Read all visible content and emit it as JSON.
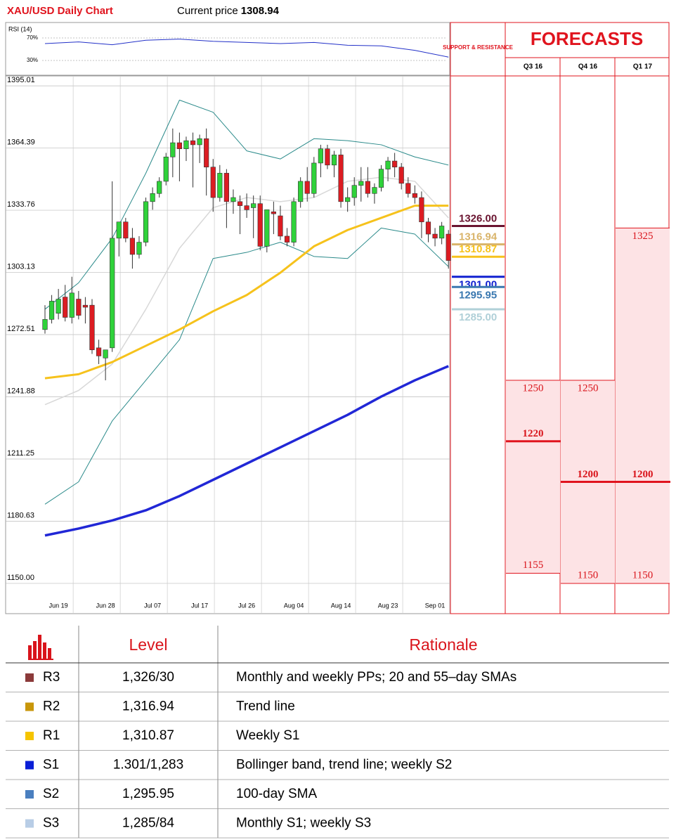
{
  "chart_data": [
    {
      "type": "rsi",
      "label": "RSI (14)",
      "color": "#2230c8",
      "x": [
        0,
        5,
        10,
        15,
        20,
        25,
        30,
        35,
        40,
        45,
        50,
        55,
        60
      ],
      "values": [
        60,
        63,
        58,
        66,
        68,
        64,
        62,
        60,
        62,
        57,
        56,
        48,
        36
      ],
      "ylim": [
        3.75,
        97.5
      ],
      "yticks": [
        {
          "value": 30,
          "label": "30%"
        },
        {
          "value": 70,
          "label": "70%"
        }
      ]
    },
    {
      "type": "candlestick",
      "title": "XAU/USD Daily Chart",
      "price_label": "Current price",
      "price": 1308.94,
      "up_color": "#2fd23a",
      "down_color": "#dc1c22",
      "categories": [
        null,
        null,
        "Jun 19",
        null,
        null,
        null,
        null,
        null,
        null,
        "Jun 28",
        null,
        null,
        null,
        null,
        null,
        null,
        "Jul 07",
        null,
        null,
        null,
        null,
        null,
        null,
        "Jul 17",
        null,
        null,
        null,
        null,
        null,
        null,
        "Jul 26",
        null,
        null,
        null,
        null,
        null,
        null,
        "Aug 04",
        null,
        null,
        null,
        null,
        null,
        null,
        "Aug 14",
        null,
        null,
        null,
        null,
        null,
        null,
        "Aug 23",
        null,
        null,
        null,
        null,
        null,
        null,
        "Sep 01",
        null,
        null
      ],
      "open": [
        1275,
        1280,
        1283,
        1291,
        1281,
        1290,
        1287,
        1287,
        1266,
        1261,
        1266,
        1320,
        1328,
        1320,
        1312,
        1318,
        1338,
        1342,
        1348,
        1360,
        1367,
        1364,
        1368,
        1366,
        1369,
        1355,
        1340,
        1352,
        1338,
        1338,
        1336,
        1335,
        1337,
        1316,
        1333,
        1331,
        1321,
        1318,
        1338,
        1348,
        1342,
        1357,
        1364,
        1356,
        1361,
        1338,
        1340,
        1346,
        1348,
        1342,
        1345,
        1354,
        1358,
        1355,
        1347,
        1342,
        1340,
        1328,
        1322,
        1320,
        1322
      ],
      "high": [
        1287,
        1292,
        1295,
        1297,
        1301,
        1294,
        1291,
        1290,
        1270,
        1265,
        1348,
        1328,
        1330,
        1325,
        1321,
        1340,
        1345,
        1350,
        1362,
        1374,
        1372,
        1370,
        1372,
        1371,
        1374,
        1359,
        1356,
        1354,
        1344,
        1341,
        1342,
        1341,
        1341,
        1334,
        1338,
        1336,
        1325,
        1340,
        1350,
        1355,
        1360,
        1366,
        1366,
        1363,
        1364,
        1345,
        1350,
        1355,
        1355,
        1347,
        1356,
        1360,
        1362,
        1357,
        1350,
        1346,
        1343,
        1330,
        1325,
        1328,
        1324
      ],
      "low": [
        1273,
        1278,
        1280,
        1279,
        1278,
        1280,
        1278,
        1263,
        1258,
        1250,
        1264,
        1311,
        1318,
        1305,
        1310,
        1316,
        1334,
        1340,
        1346,
        1350,
        1348,
        1358,
        1345,
        1357,
        1341,
        1333,
        1338,
        1325,
        1332,
        1322,
        1330,
        1320,
        1314,
        1313,
        1322,
        1319,
        1316,
        1316,
        1335,
        1338,
        1340,
        1350,
        1354,
        1350,
        1335,
        1333,
        1336,
        1338,
        1340,
        1337,
        1343,
        1348,
        1350,
        1344,
        1340,
        1337,
        1320,
        1318,
        1316,
        1317,
        1305
      ],
      "close": [
        1280,
        1289,
        1290,
        1281,
        1293,
        1282,
        1286,
        1265,
        1262,
        1265,
        1320,
        1328,
        1320,
        1312,
        1318,
        1338,
        1342,
        1348,
        1360,
        1367,
        1364,
        1368,
        1366,
        1369,
        1355,
        1340,
        1352,
        1338,
        1340,
        1336,
        1334,
        1337,
        1316,
        1334,
        1332,
        1321,
        1318,
        1338,
        1348,
        1342,
        1357,
        1364,
        1356,
        1361,
        1338,
        1340,
        1346,
        1348,
        1342,
        1345,
        1354,
        1358,
        1355,
        1347,
        1342,
        1340,
        1328,
        1322,
        1320,
        1326,
        1309
      ],
      "lines": [
        {
          "color": "#2a8a8a",
          "x": [
            0,
            5,
            10,
            15,
            20,
            25,
            30,
            35,
            40,
            45,
            50,
            55,
            60
          ],
          "values": [
            1285,
            1298,
            1320,
            1352,
            1388,
            1382,
            1363,
            1359,
            1369,
            1368,
            1366,
            1360,
            1356
          ]
        },
        {
          "color": "#2a8a8a",
          "x": [
            0,
            5,
            10,
            15,
            20,
            25,
            30,
            35,
            40,
            45,
            50,
            55,
            60
          ],
          "values": [
            1189,
            1200,
            1230,
            1250,
            1270,
            1310,
            1313,
            1318,
            1311,
            1310,
            1325,
            1322,
            1306
          ]
        },
        {
          "color": "#d8d8d8",
          "x": [
            0,
            5,
            10,
            15,
            20,
            25,
            30,
            35,
            40,
            45,
            50,
            55,
            60
          ],
          "values": [
            1238,
            1245,
            1258,
            1285,
            1315,
            1335,
            1340,
            1338,
            1340,
            1348,
            1350,
            1348,
            1330
          ]
        },
        {
          "color": "#f6c21c",
          "x": [
            0,
            5,
            10,
            15,
            20,
            25,
            30,
            35,
            40,
            45,
            50,
            55,
            60
          ],
          "values": [
            1251,
            1253,
            1259,
            1267,
            1275,
            1284,
            1292,
            1303,
            1316,
            1324,
            1330,
            1336,
            1336
          ]
        },
        {
          "color": "#2127d6",
          "x": [
            0,
            5,
            10,
            15,
            20,
            25,
            30,
            35,
            40,
            45,
            50,
            55,
            60
          ],
          "values": [
            1173.6,
            1177,
            1181,
            1186,
            1193,
            1201,
            1209,
            1217,
            1225,
            1233,
            1242,
            1250,
            1257
          ]
        }
      ],
      "ylim": [
        1135.1,
        1399.9
      ],
      "yticks": [
        {
          "value": 1150,
          "label": "1150.00"
        },
        1180.63,
        1211.25,
        1241.88,
        1272.51,
        1303.13,
        1333.76,
        1364.39,
        1395.01
      ],
      "support_resistance": {
        "title": "SUPPORT & RESISTANCE",
        "levels": [
          {
            "value": 1326,
            "label": "1326.00",
            "color": "#6a1430"
          },
          {
            "value": 1316.94,
            "label": "1316.94",
            "color": "#d9b46a"
          },
          {
            "value": 1310.87,
            "label": "1310.87",
            "color": "#f6c21c"
          },
          {
            "value": 1301,
            "label": "1301.00",
            "color": "#1020d0"
          },
          {
            "value": 1295.95,
            "label": "1295.95",
            "color": "#3a78b0"
          },
          {
            "value": 1285,
            "label": "1285.00",
            "color": "#b0d0d8"
          }
        ]
      }
    },
    {
      "type": "forecast",
      "title": "FORECASTS",
      "color": "#e0141e",
      "shade": "#fde3e5",
      "columns": [
        {
          "name": "Q3 16",
          "high": 1250,
          "mid": 1220,
          "low": 1155
        },
        {
          "name": "Q4 16",
          "high": 1250,
          "mid": 1200,
          "low": 1150
        },
        {
          "name": "Q1 17",
          "high": 1325,
          "mid": 1200,
          "low": 1150
        }
      ]
    }
  ],
  "table": {
    "header": [
      "Level",
      "Rationale"
    ],
    "rows": [
      {
        "swatch": "#8b3a3a",
        "name": "R3",
        "level": "1,326/30",
        "rationale": "Monthly and weekly PPs; 20 and 55–day SMAs"
      },
      {
        "swatch": "#c8960a",
        "name": "R2",
        "level": "1,316.94",
        "rationale": "Trend line"
      },
      {
        "swatch": "#f5c400",
        "name": "R1",
        "level": "1,310.87",
        "rationale": "Weekly S1"
      },
      {
        "swatch": "#0a1fd6",
        "name": "S1",
        "level": "1.301/1,283",
        "rationale": "Bollinger band, trend line; weekly S2"
      },
      {
        "swatch": "#4a7fbf",
        "name": "S2",
        "level": "1,295.95",
        "rationale": "100-day SMA"
      },
      {
        "swatch": "#b8cde6",
        "name": "S3",
        "level": "1,285/84",
        "rationale": "Monthly S1; weekly S3"
      }
    ]
  }
}
